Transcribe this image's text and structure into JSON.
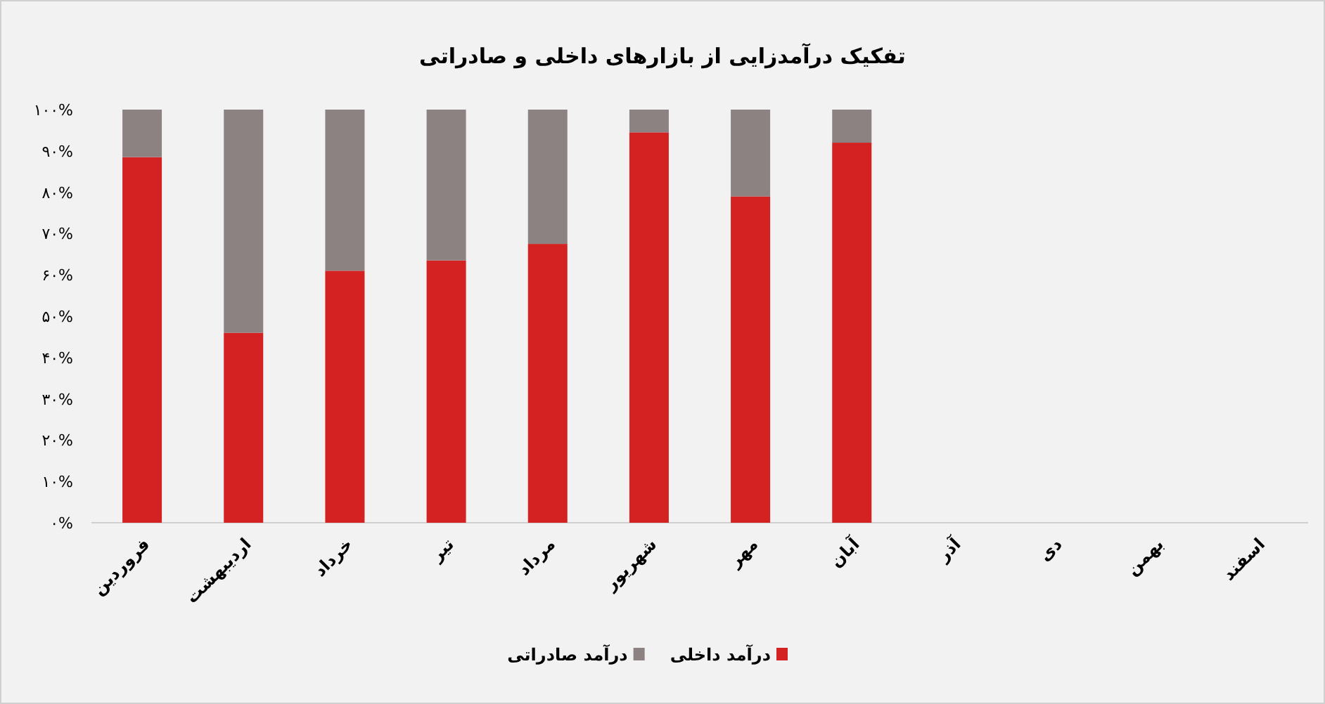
{
  "chart_data": {
    "type": "bar",
    "stacked": true,
    "title": "تفکیک درآمدزایی از بازارهای داخلی و صادراتی",
    "categories": [
      "فروردین",
      "اردیبهشت",
      "خرداد",
      "تیر",
      "مرداد",
      "شهریور",
      "مهر",
      "آبان",
      "آذر",
      "دی",
      "بهمن",
      "اسفند"
    ],
    "series": [
      {
        "name": "درآمد داخلی",
        "color": "#d42222",
        "values": [
          88.5,
          46,
          61,
          63.5,
          67.5,
          94.5,
          79,
          92,
          null,
          null,
          null,
          null
        ]
      },
      {
        "name": "درآمد صادراتی",
        "color": "#8c8282",
        "values": [
          11.5,
          54,
          39,
          36.5,
          32.5,
          5.5,
          21,
          8,
          null,
          null,
          null,
          null
        ]
      }
    ],
    "ylim": [
      0,
      100
    ],
    "yticks": [
      {
        "value": 0,
        "label": "۰%"
      },
      {
        "value": 10,
        "label": "۱۰%"
      },
      {
        "value": 20,
        "label": "۲۰%"
      },
      {
        "value": 30,
        "label": "۳۰%"
      },
      {
        "value": 40,
        "label": "۴۰%"
      },
      {
        "value": 50,
        "label": "۵۰%"
      },
      {
        "value": 60,
        "label": "۶۰%"
      },
      {
        "value": 70,
        "label": "۷۰%"
      },
      {
        "value": 80,
        "label": "۸۰%"
      },
      {
        "value": 90,
        "label": "۹۰%"
      },
      {
        "value": 100,
        "label": "۱۰۰%"
      }
    ],
    "legend": "bottom"
  }
}
